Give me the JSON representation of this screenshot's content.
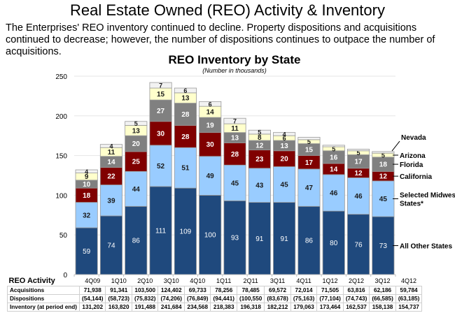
{
  "page": {
    "title": "Real Estate Owned (REO) Activity & Inventory",
    "intro": "The Enterprises' REO inventory continued to decline. Property dispositions and acquisitions continued to decrease; however, the number of dispositions continues to outpace the number of acquisitions."
  },
  "chart_data": {
    "type": "bar",
    "stacked": true,
    "title": "REO Inventory by State",
    "subtitle": "(Number in thousands)",
    "xlabel": "",
    "ylabel": "",
    "ylim": [
      0,
      250
    ],
    "yticks": [
      0,
      50,
      100,
      150,
      200,
      250
    ],
    "grid": true,
    "legend_position": "right (callout labels beside last bar)",
    "categories": [
      "4Q09",
      "1Q10",
      "2Q10",
      "3Q10",
      "4Q10",
      "1Q11",
      "2Q11",
      "3Q11",
      "4Q11",
      "1Q12",
      "2Q12",
      "3Q12",
      "4Q12"
    ],
    "series": [
      {
        "name": "All Other States",
        "legend_label": "All Other States",
        "color": "#1f497d",
        "text_color": "#ffffff",
        "values": [
          59,
          74,
          86,
          111,
          109,
          100,
          93,
          91,
          91,
          86,
          80,
          76,
          73
        ],
        "labeled": [
          true,
          true,
          true,
          true,
          true,
          true,
          true,
          true,
          true,
          true,
          true,
          true,
          true
        ]
      },
      {
        "name": "Selected Midwest States*",
        "legend_label": "Selected Midwest States*",
        "color": "#99ccff",
        "text_color": "#1a1a1a",
        "values": [
          32,
          39,
          44,
          52,
          51,
          49,
          45,
          43,
          45,
          47,
          46,
          46,
          45
        ],
        "labeled": [
          true,
          true,
          true,
          true,
          true,
          true,
          true,
          true,
          true,
          true,
          true,
          true,
          true
        ]
      },
      {
        "name": "California",
        "legend_label": "California",
        "color": "#800000",
        "text_color": "#ffffff",
        "values": [
          18,
          22,
          25,
          30,
          28,
          30,
          28,
          23,
          20,
          17,
          14,
          12,
          12
        ],
        "labeled": [
          true,
          true,
          true,
          true,
          true,
          true,
          true,
          true,
          true,
          true,
          true,
          true,
          true
        ]
      },
      {
        "name": "Florida",
        "legend_label": "Florida",
        "color": "#808080",
        "text_color": "#ffffff",
        "values": [
          10,
          14,
          20,
          27,
          28,
          19,
          13,
          12,
          13,
          15,
          16,
          17,
          18
        ],
        "labeled": [
          true,
          true,
          true,
          true,
          true,
          true,
          true,
          true,
          true,
          true,
          true,
          true,
          true
        ]
      },
      {
        "name": "Arizona",
        "legend_label": "Arizona",
        "color": "#ffffcc",
        "text_color": "#1a1a1a",
        "values": [
          9,
          11,
          13,
          15,
          13,
          14,
          11,
          8,
          6,
          5,
          5,
          5,
          5
        ],
        "labeled": [
          true,
          true,
          true,
          true,
          true,
          true,
          true,
          true,
          true,
          true,
          true,
          true,
          true
        ]
      },
      {
        "name": "Nevada",
        "legend_label": "Nevada",
        "color": "#f2f2f2",
        "text_color": "#1a1a1a",
        "values": [
          4,
          4,
          5,
          7,
          6,
          6,
          7,
          5,
          4,
          3,
          2,
          2,
          2
        ],
        "labeled": [
          true,
          true,
          true,
          true,
          true,
          true,
          true,
          true,
          true,
          false,
          false,
          false,
          false
        ]
      }
    ]
  },
  "table": {
    "header_label": "REO Activity",
    "columns": [
      "4Q09",
      "1Q10",
      "2Q10",
      "3Q10",
      "4Q10",
      "1Q11",
      "2Q11",
      "3Q11",
      "4Q11",
      "1Q12",
      "2Q12",
      "3Q12",
      "4Q12"
    ],
    "rows": [
      {
        "label": "Acquisitions",
        "values": [
          "71,938",
          "91,341",
          "103,500",
          "124,402",
          "69,733",
          "78,256",
          "78,485",
          "69,572",
          "72,014",
          "71,505",
          "63,816",
          "62,186",
          "59,784"
        ]
      },
      {
        "label": "Dispositions",
        "values": [
          "(54,144)",
          "(58,723)",
          "(75,832)",
          "(74,206)",
          "(76,849)",
          "(94,441)",
          "(100,550",
          "(83,678)",
          "(75,163)",
          "(77,104)",
          "(74,743)",
          "(66,585)",
          "(63,185)"
        ]
      },
      {
        "label": "Inventory (at period end)",
        "values": [
          "131,202",
          "163,820",
          "191,488",
          "241,684",
          "234,568",
          "218,383",
          "196,318",
          "182,212",
          "179,063",
          "173,464",
          "162,537",
          "158,138",
          "154,737"
        ]
      }
    ]
  }
}
